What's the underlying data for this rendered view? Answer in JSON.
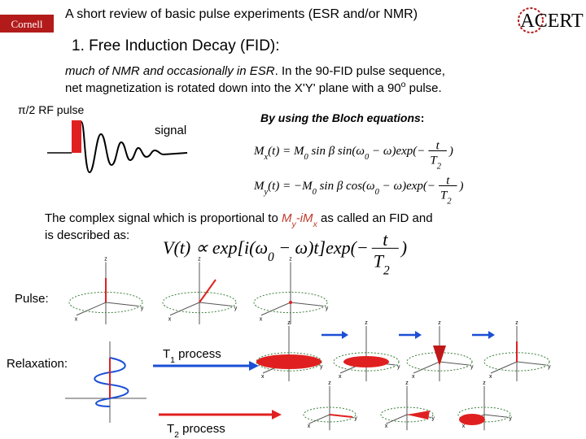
{
  "header": {
    "title": "A short review of basic pulse experiments (ESR and/or NMR)",
    "left_logo": "Cornell",
    "right_logo": "ACERT"
  },
  "section": {
    "heading": "1. Free Induction Decay (FID):",
    "intro_lines": [
      [
        {
          "i": "much of NMR and occasionally in ESR"
        },
        {
          "t": ". In the 90-FID pulse sequence,"
        }
      ],
      [
        {
          "t": "net magnetization is rotated down into the X'Y' plane with a 90"
        },
        {
          "sup": "o"
        },
        {
          "t": " pulse."
        }
      ]
    ]
  },
  "sequence": {
    "pulse_label": "π/2 RF pulse",
    "signal_label": "signal"
  },
  "bloch": {
    "label": [
      {
        "i": "By using the Bloch equations"
      },
      {
        "t": ":"
      }
    ],
    "equations": [
      {
        "lhs": [
          {
            "t": "M"
          },
          {
            "sub": "x"
          },
          {
            "t": "(t) = M"
          },
          {
            "sub": "0"
          },
          {
            "t": " sin β sin(ω"
          },
          {
            "sub": "0"
          },
          {
            "t": " − ω)exp(−"
          }
        ],
        "num": "t",
        "den": [
          {
            "t": "T"
          },
          {
            "sub": "2"
          }
        ],
        "close": ")"
      },
      {
        "lhs": [
          {
            "t": "M"
          },
          {
            "sub": "y"
          },
          {
            "t": "(t) = −M"
          },
          {
            "sub": "0"
          },
          {
            "t": " sin β cos(ω"
          },
          {
            "sub": "0"
          },
          {
            "t": " − ω)exp(−"
          }
        ],
        "num": "t",
        "den": [
          {
            "t": "T"
          },
          {
            "sub": "2"
          }
        ],
        "close": ")"
      }
    ]
  },
  "complex": {
    "lines": [
      [
        {
          "t": "The complex signal which is proportional to "
        },
        {
          "h": "M"
        },
        {
          "hsub": "y"
        },
        {
          "h": "-iM"
        },
        {
          "hsub": "x"
        },
        {
          "t": " as called an FID and"
        }
      ],
      [
        {
          "t": "is described as:"
        }
      ]
    ],
    "equation": {
      "lhs": [
        {
          "t": "V(t) ∝ exp[i(ω"
        },
        {
          "sub": "0"
        },
        {
          "t": " − ω)t]exp(−"
        }
      ],
      "num": "t",
      "den": [
        {
          "t": "T"
        },
        {
          "sub": "2"
        }
      ],
      "close": ")"
    }
  },
  "diagrams": {
    "pulse_label": "Pulse:",
    "relaxation_label": "Relaxation:",
    "t1_label": [
      {
        "t": "T"
      },
      {
        "sub": "1"
      },
      {
        "t": " process"
      }
    ],
    "t2_label": [
      {
        "t": "T"
      },
      {
        "sub": "2"
      },
      {
        "t": " process"
      }
    ],
    "axis": {
      "z": "z",
      "x": "x",
      "y": "y"
    }
  }
}
